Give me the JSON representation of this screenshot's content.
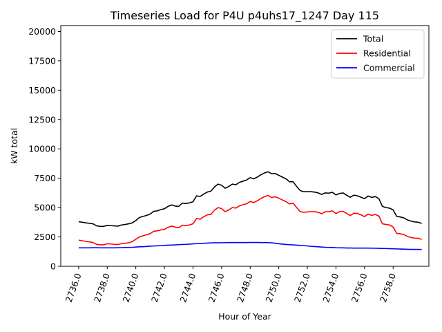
{
  "chart_data": {
    "type": "line",
    "title": "Timeseries Load for P4U p4uhs17_1247  Day 115",
    "xlabel": "Hour of Year",
    "ylabel": "kW total",
    "xlim": [
      2734.75,
      2760.5
    ],
    "ylim": [
      0,
      20500
    ],
    "xticks": [
      2736,
      2738,
      2740,
      2742,
      2744,
      2746,
      2748,
      2750,
      2752,
      2754,
      2756,
      2758
    ],
    "xtick_labels": [
      "2736.0",
      "2738.0",
      "2740.0",
      "2742.0",
      "2744.0",
      "2746.0",
      "2748.0",
      "2750.0",
      "2752.0",
      "2754.0",
      "2756.0",
      "2758.0"
    ],
    "yticks": [
      0,
      2500,
      5000,
      7500,
      10000,
      12500,
      15000,
      17500,
      20000
    ],
    "ytick_labels": [
      "0",
      "2500",
      "5000",
      "7500",
      "10000",
      "12500",
      "15000",
      "17500",
      "20000"
    ],
    "legend_position": "top-right",
    "x_start": 2736.0,
    "x_step": 0.25,
    "series": [
      {
        "name": "Total",
        "color": "#000000",
        "values": [
          3800,
          3750,
          3700,
          3660,
          3620,
          3450,
          3400,
          3400,
          3480,
          3460,
          3440,
          3420,
          3520,
          3560,
          3620,
          3700,
          3900,
          4150,
          4250,
          4330,
          4450,
          4680,
          4720,
          4830,
          4900,
          5100,
          5230,
          5130,
          5100,
          5380,
          5350,
          5400,
          5500,
          6000,
          5950,
          6150,
          6320,
          6400,
          6750,
          7000,
          6900,
          6650,
          6800,
          7000,
          6950,
          7150,
          7250,
          7350,
          7550,
          7450,
          7600,
          7800,
          7950,
          8050,
          7880,
          7900,
          7750,
          7600,
          7450,
          7200,
          7200,
          6800,
          6450,
          6350,
          6350,
          6350,
          6320,
          6250,
          6120,
          6250,
          6230,
          6300,
          6080,
          6200,
          6250,
          6050,
          5880,
          6060,
          6000,
          5880,
          5760,
          5990,
          5870,
          5940,
          5760,
          5100,
          5000,
          4950,
          4800,
          4250,
          4200,
          4120,
          3950,
          3850,
          3780,
          3750,
          3650
        ]
      },
      {
        "name": "Residential",
        "color": "#ff0000",
        "values": [
          2230,
          2180,
          2120,
          2080,
          2020,
          1870,
          1830,
          1830,
          1920,
          1900,
          1870,
          1850,
          1930,
          1960,
          2000,
          2100,
          2300,
          2500,
          2600,
          2680,
          2780,
          2980,
          3020,
          3100,
          3150,
          3320,
          3420,
          3340,
          3280,
          3500,
          3470,
          3520,
          3620,
          4080,
          4010,
          4220,
          4380,
          4420,
          4780,
          5000,
          4920,
          4650,
          4800,
          5000,
          4960,
          5150,
          5250,
          5330,
          5520,
          5430,
          5580,
          5780,
          5930,
          6040,
          5860,
          5920,
          5800,
          5650,
          5510,
          5310,
          5380,
          5000,
          4650,
          4600,
          4630,
          4650,
          4650,
          4600,
          4480,
          4640,
          4650,
          4720,
          4500,
          4650,
          4680,
          4500,
          4320,
          4520,
          4500,
          4380,
          4230,
          4450,
          4330,
          4420,
          4280,
          3620,
          3560,
          3520,
          3340,
          2800,
          2770,
          2700,
          2550,
          2450,
          2400,
          2380,
          2300
        ]
      },
      {
        "name": "Commercial",
        "color": "#0000ff",
        "values": [
          1570,
          1570,
          1570,
          1570,
          1580,
          1580,
          1570,
          1570,
          1570,
          1570,
          1570,
          1580,
          1590,
          1600,
          1610,
          1620,
          1640,
          1660,
          1670,
          1690,
          1710,
          1730,
          1740,
          1760,
          1780,
          1800,
          1810,
          1820,
          1840,
          1860,
          1870,
          1890,
          1910,
          1930,
          1950,
          1960,
          1980,
          1990,
          2000,
          2000,
          2010,
          2010,
          2020,
          2020,
          2020,
          2020,
          2020,
          2020,
          2030,
          2030,
          2030,
          2020,
          2020,
          2010,
          2000,
          1960,
          1920,
          1890,
          1860,
          1840,
          1820,
          1800,
          1780,
          1760,
          1730,
          1700,
          1680,
          1660,
          1640,
          1620,
          1610,
          1600,
          1580,
          1570,
          1570,
          1560,
          1560,
          1550,
          1550,
          1550,
          1550,
          1550,
          1540,
          1540,
          1530,
          1520,
          1510,
          1500,
          1490,
          1480,
          1470,
          1460,
          1450,
          1440,
          1440,
          1440,
          1430
        ]
      }
    ]
  }
}
